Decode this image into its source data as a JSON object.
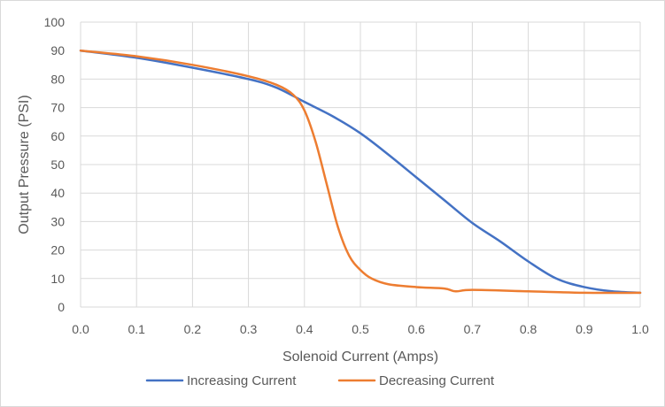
{
  "chart_data": {
    "type": "line",
    "title": "",
    "xlabel": "Solenoid Current (Amps)",
    "ylabel": "Output Pressure (PSI)",
    "xlim": [
      0.0,
      1.0
    ],
    "ylim": [
      0,
      100
    ],
    "x_ticks": [
      "0.0",
      "0.1",
      "0.2",
      "0.3",
      "0.4",
      "0.5",
      "0.6",
      "0.7",
      "0.8",
      "0.9",
      "1.0"
    ],
    "y_ticks": [
      "0",
      "10",
      "20",
      "30",
      "40",
      "50",
      "60",
      "70",
      "80",
      "90",
      "100"
    ],
    "grid": "vertical-and-horizontal",
    "legend_position": "bottom",
    "series": [
      {
        "name": "Increasing Current",
        "color": "#4472C4",
        "x": [
          0.0,
          0.1,
          0.2,
          0.3,
          0.35,
          0.4,
          0.45,
          0.5,
          0.55,
          0.6,
          0.65,
          0.7,
          0.75,
          0.8,
          0.85,
          0.9,
          0.95,
          1.0
        ],
        "y": [
          90,
          87.5,
          84,
          80,
          77,
          72,
          67,
          61,
          53.5,
          45.5,
          37.5,
          29.5,
          23,
          16,
          10,
          7,
          5.5,
          5
        ]
      },
      {
        "name": "Decreasing Current",
        "color": "#ED7D31",
        "x": [
          0.0,
          0.1,
          0.2,
          0.3,
          0.35,
          0.38,
          0.4,
          0.42,
          0.44,
          0.46,
          0.48,
          0.5,
          0.52,
          0.55,
          0.6,
          0.65,
          0.67,
          0.7,
          0.8,
          0.9,
          1.0
        ],
        "y": [
          90,
          88,
          85,
          81,
          78,
          74.5,
          69,
          58,
          43,
          28,
          18,
          13,
          10,
          8,
          7,
          6.5,
          5.5,
          6,
          5.5,
          5,
          5
        ]
      }
    ]
  }
}
